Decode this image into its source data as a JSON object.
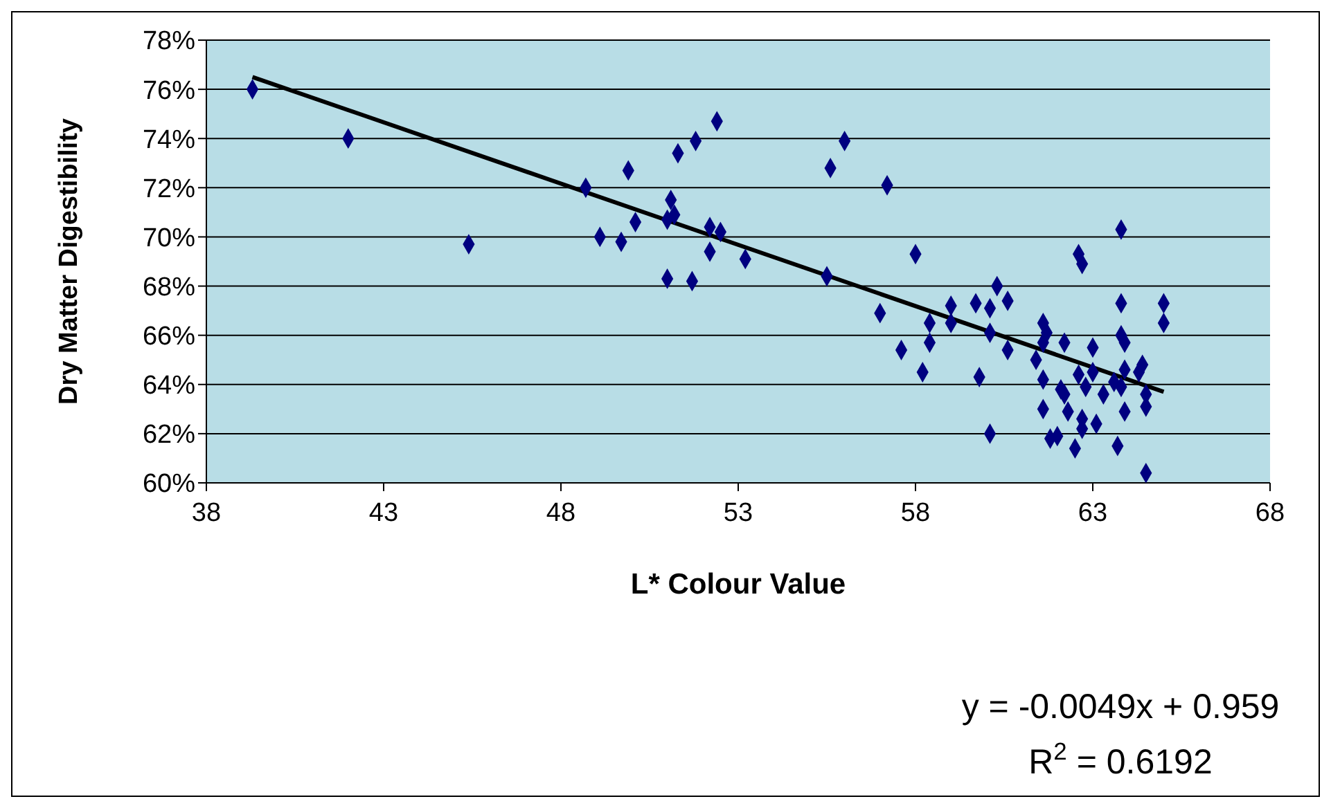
{
  "chart_data": {
    "type": "scatter",
    "xlabel": "L* Colour Value",
    "ylabel": "Dry Matter Digestibility",
    "xlim": [
      38,
      68
    ],
    "xticks": [
      38,
      43,
      48,
      53,
      58,
      63,
      68
    ],
    "ylim": [
      60,
      78
    ],
    "yticks": [
      {
        "value": 60,
        "label": "60%"
      },
      {
        "value": 62,
        "label": "62%"
      },
      {
        "value": 64,
        "label": "64%"
      },
      {
        "value": 66,
        "label": "66%"
      },
      {
        "value": 68,
        "label": "68%"
      },
      {
        "value": 70,
        "label": "70%"
      },
      {
        "value": 72,
        "label": "72%"
      },
      {
        "value": 74,
        "label": "74%"
      },
      {
        "value": 76,
        "label": "76%"
      },
      {
        "value": 78,
        "label": "78%"
      }
    ],
    "grid": "y",
    "marker": "diamond",
    "series": [
      {
        "color": "#000080",
        "x": [
          39.3,
          42.0,
          45.4,
          48.7,
          49.1,
          49.7,
          49.9,
          50.1,
          51.1,
          51.2,
          51.0,
          51.0,
          51.3,
          51.8,
          51.7,
          52.2,
          52.5,
          52.2,
          52.4,
          53.2,
          56.0,
          55.6,
          57.2,
          55.5,
          58.0,
          57.0,
          57.6,
          58.2,
          58.4,
          58.4,
          59.0,
          59.0,
          59.7,
          60.1,
          59.8,
          60.3,
          60.6,
          60.1,
          60.6,
          60.1,
          61.6,
          61.7,
          61.6,
          61.4,
          62.2,
          61.6,
          61.6,
          61.8,
          62.0,
          62.1,
          62.2,
          62.6,
          62.7,
          63.0,
          62.6,
          62.8,
          63.0,
          62.3,
          62.7,
          63.1,
          62.7,
          62.5,
          63.3,
          63.8,
          63.8,
          63.8,
          63.9,
          63.9,
          63.6,
          63.8,
          63.9,
          63.7,
          64.3,
          64.4,
          64.5,
          64.5,
          64.5,
          65.0,
          65.0
        ],
        "values": [
          76.0,
          74.0,
          69.7,
          72.0,
          70.0,
          69.8,
          72.7,
          70.6,
          71.5,
          70.9,
          70.7,
          68.3,
          73.4,
          73.9,
          68.2,
          70.4,
          70.2,
          69.4,
          74.7,
          69.1,
          73.9,
          72.8,
          72.1,
          68.4,
          69.3,
          66.9,
          65.4,
          64.5,
          66.5,
          65.7,
          67.2,
          66.5,
          67.3,
          67.1,
          64.3,
          68.0,
          67.4,
          66.1,
          65.4,
          62.0,
          66.5,
          66.1,
          65.7,
          65.0,
          65.7,
          64.2,
          63.0,
          61.8,
          61.9,
          63.8,
          63.6,
          69.3,
          68.9,
          65.5,
          64.4,
          63.9,
          64.5,
          62.9,
          62.6,
          62.4,
          62.2,
          61.4,
          63.6,
          70.3,
          67.3,
          66.0,
          65.7,
          64.6,
          64.1,
          63.9,
          62.9,
          61.5,
          64.5,
          64.8,
          63.6,
          63.1,
          60.4,
          67.3,
          66.5
        ]
      },
      {
        "type": "line",
        "marker": "none",
        "color": "#000000",
        "x": [
          39.3,
          65.0
        ],
        "values": [
          76.5,
          63.7
        ]
      }
    ],
    "annotations": [
      "y = -0.0049x + 0.959",
      "R$^{2}$ = 0.6192"
    ]
  }
}
